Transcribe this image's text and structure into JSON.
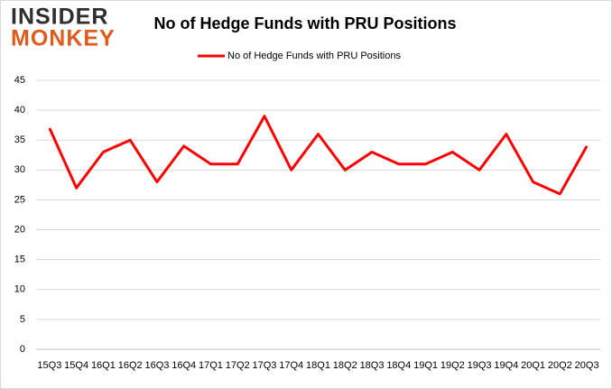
{
  "logo": {
    "line1": "INSIDER",
    "line2": "MONKEY"
  },
  "chart_data": {
    "type": "line",
    "title": "No of Hedge Funds with PRU Positions",
    "categories": [
      "15Q3",
      "15Q4",
      "16Q1",
      "16Q2",
      "16Q3",
      "16Q4",
      "17Q1",
      "17Q2",
      "17Q3",
      "17Q4",
      "18Q1",
      "18Q2",
      "18Q3",
      "18Q4",
      "19Q1",
      "19Q2",
      "19Q3",
      "19Q4",
      "20Q1",
      "20Q2",
      "20Q3"
    ],
    "series": [
      {
        "name": "No of Hedge Funds with PRU Positions",
        "color": "#ff0000",
        "values": [
          37,
          27,
          33,
          35,
          28,
          34,
          31,
          31,
          39,
          30,
          36,
          30,
          33,
          31,
          31,
          33,
          30,
          36,
          28,
          26,
          34
        ]
      }
    ],
    "ylim": [
      0,
      45
    ],
    "yticks": [
      0,
      5,
      10,
      15,
      20,
      25,
      30,
      35,
      40,
      45
    ],
    "grid": true,
    "legend": "top"
  }
}
